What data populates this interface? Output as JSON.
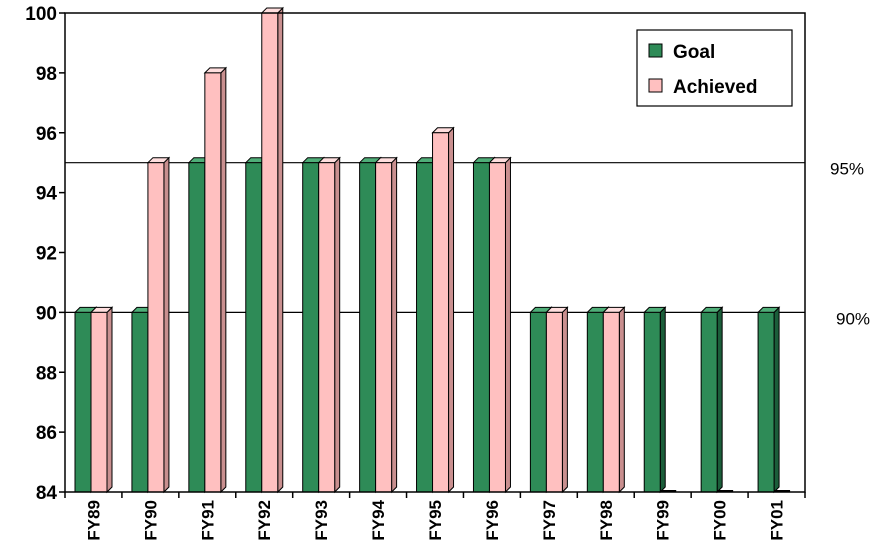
{
  "chart_data": {
    "type": "bar",
    "title": "",
    "xlabel": "",
    "ylabel": "",
    "categories": [
      "FY89",
      "FY90",
      "FY91",
      "FY92",
      "FY93",
      "FY94",
      "FY95",
      "FY96",
      "FY97",
      "FY98",
      "FY99",
      "FY00",
      "FY01"
    ],
    "series": [
      {
        "name": "Goal",
        "values": [
          90,
          90,
          95,
          95,
          95,
          95,
          95,
          95,
          90,
          90,
          90,
          90,
          90
        ]
      },
      {
        "name": "Achieved",
        "values": [
          90,
          95,
          98,
          100,
          95,
          95,
          96,
          95,
          90,
          90,
          null,
          null,
          null
        ]
      }
    ],
    "ylim": [
      84,
      100
    ],
    "yticks": [
      84,
      86,
      88,
      90,
      92,
      94,
      96,
      98,
      100
    ],
    "reference_lines": [
      {
        "value": 95,
        "label": "95%"
      },
      {
        "value": 90,
        "label": "90%"
      }
    ],
    "legend": {
      "position": "top-right",
      "entries": [
        "Goal",
        "Achieved"
      ]
    },
    "grid": false,
    "colors": {
      "goal_front": "#2e8b57",
      "goal_side": "#1b5e3a",
      "goal_top": "#4fae78",
      "achieved_front": "#ffc0c0",
      "achieved_side": "#c98f8f",
      "achieved_top": "#ffdede"
    }
  }
}
